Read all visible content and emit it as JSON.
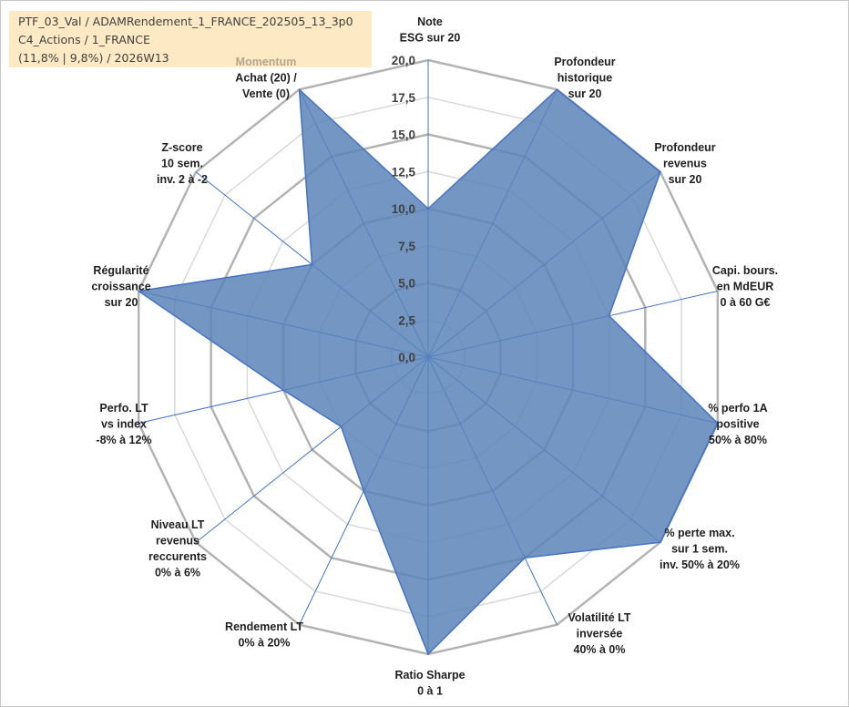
{
  "info": {
    "line1": "PTF_03_Val / ADAMRendement_1_FRANCE_202505_13_3p0",
    "line2": "C4_Actions / 1_FRANCE",
    "line3": "(11,8% | 9,8%) / 2026W13"
  },
  "colors": {
    "fill": "#5b84b8",
    "stroke": "#4472c4",
    "grid_outer": "#b3b3b3",
    "grid_inner": "#d9d9d9",
    "spokes": "#4472c4"
  },
  "chart_data": {
    "type": "radar",
    "title": "",
    "rmin": 0,
    "rmax": 20,
    "tick_step": 2.5,
    "ticks": [
      "0,0",
      "2,5",
      "5,0",
      "7,5",
      "10,0",
      "12,5",
      "15,0",
      "17,5",
      "20,0"
    ],
    "axes": [
      {
        "label": [
          "Note",
          "ESG sur 20"
        ],
        "value": 10
      },
      {
        "label": [
          "Profondeur",
          "historique",
          "sur 20"
        ],
        "value": 20
      },
      {
        "label": [
          "Profondeur",
          "revenus",
          "sur 20"
        ],
        "value": 20
      },
      {
        "label": [
          "Capi. bours.",
          "en MdEUR",
          "0 à 60 G€"
        ],
        "value": 12.5
      },
      {
        "label": [
          "% perfo 1A",
          "positive",
          "50% à 80%"
        ],
        "value": 20
      },
      {
        "label": [
          "% perte max.",
          "sur 1 sem.",
          "inv. 50% à 20%"
        ],
        "value": 20
      },
      {
        "label": [
          "Volatilité LT",
          "inversée",
          "40% à 0%"
        ],
        "value": 15
      },
      {
        "label": [
          "Ratio Sharpe",
          "0 à 1"
        ],
        "value": 20
      },
      {
        "label": [
          "Rendement LT",
          "0% à 20%"
        ],
        "value": 10
      },
      {
        "label": [
          "Niveau LT",
          "revenus",
          "reccurents",
          "0% à 6%"
        ],
        "value": 7.5
      },
      {
        "label": [
          "Perfo. LT",
          "vs index",
          "-8% à 12%"
        ],
        "value": 10
      },
      {
        "label": [
          "Régularité",
          "croissance",
          "sur 20"
        ],
        "value": 20
      },
      {
        "label": [
          "Z-score",
          "10 sem.",
          "inv. 2 à -2"
        ],
        "value": 10
      },
      {
        "label": [
          "Momentum",
          "Achat (20) /",
          "Vente (0)"
        ],
        "value": 20
      }
    ],
    "series": [
      {
        "name": "PTF_03_Val"
      }
    ]
  }
}
